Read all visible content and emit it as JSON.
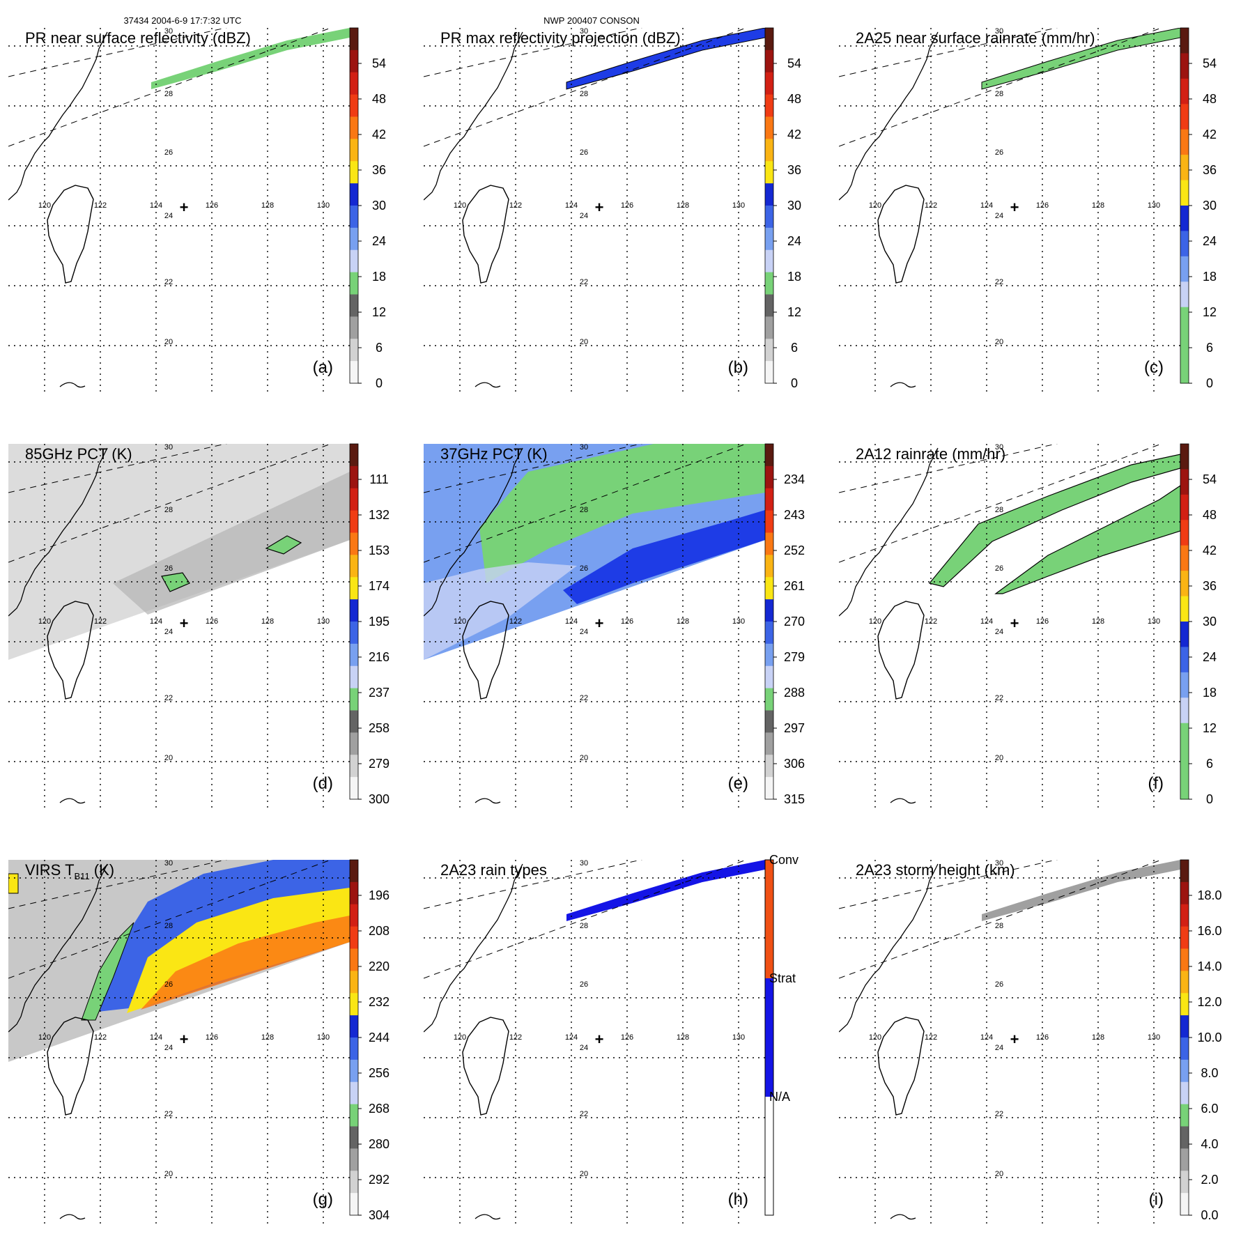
{
  "header": {
    "orbit_time": "37434 2004-6-9 17:7:32 UTC",
    "storm": "NWP 200407 CONSON"
  },
  "lon_labels": [
    "120",
    "122",
    "124",
    "126",
    "128",
    "130"
  ],
  "lat_labels": [
    "30",
    "28",
    "26",
    "24",
    "22",
    "20"
  ],
  "panels": [
    {
      "title": "PR near surface reflectivity (dBZ)",
      "letter": "(a)",
      "ticks": [
        "54",
        "48",
        "42",
        "36",
        "30",
        "24",
        "18",
        "12",
        "6",
        "0"
      ],
      "colors": [
        "#5a1a10",
        "#9c1410",
        "#d22014",
        "#f03c14",
        "#fa7814",
        "#fab414",
        "#fae614",
        "#1428d2",
        "#3c64e6",
        "#78a0f0",
        "#c8d2f5",
        "#78d278",
        "#646464",
        "#a0a0a0",
        "#d2d2d2",
        "#f5f5f5"
      ]
    },
    {
      "title": "PR max reflectivity projection (dBZ)",
      "letter": "(b)",
      "ticks": [
        "54",
        "48",
        "42",
        "36",
        "30",
        "24",
        "18",
        "12",
        "6",
        "0"
      ],
      "colors": [
        "#5a1a10",
        "#9c1410",
        "#d22014",
        "#f03c14",
        "#fa7814",
        "#fab414",
        "#fae614",
        "#1428d2",
        "#3c64e6",
        "#78a0f0",
        "#c8d2f5",
        "#78d278",
        "#646464",
        "#a0a0a0",
        "#d2d2d2",
        "#f5f5f5"
      ]
    },
    {
      "title": "2A25 near surface rainrate (mm/hr)",
      "letter": "(c)",
      "ticks": [
        "54",
        "48",
        "42",
        "36",
        "30",
        "24",
        "18",
        "12",
        "6",
        "0"
      ],
      "colors": [
        "#5a1a10",
        "#9c1410",
        "#d22014",
        "#f03c14",
        "#fa7814",
        "#fab414",
        "#fae614",
        "#1428d2",
        "#3c64e6",
        "#78a0f0",
        "#c8d2f5",
        "#78d278",
        "#78d278",
        "#78d278"
      ]
    },
    {
      "title": "85GHz PCT (K)",
      "letter": "(d)",
      "ticks": [
        "111",
        "132",
        "153",
        "174",
        "195",
        "216",
        "237",
        "258",
        "279",
        "300"
      ],
      "colors": [
        "#5a1a10",
        "#9c1410",
        "#d22014",
        "#f03c14",
        "#fa7814",
        "#fab414",
        "#fae614",
        "#1428d2",
        "#3c64e6",
        "#78a0f0",
        "#c8d2f5",
        "#78d278",
        "#646464",
        "#a0a0a0",
        "#d2d2d2",
        "#f5f5f5"
      ]
    },
    {
      "title": "37GHz PCT (K)",
      "letter": "(e)",
      "ticks": [
        "234",
        "243",
        "252",
        "261",
        "270",
        "279",
        "288",
        "297",
        "306",
        "315"
      ],
      "colors": [
        "#5a1a10",
        "#9c1410",
        "#d22014",
        "#f03c14",
        "#fa7814",
        "#fab414",
        "#fae614",
        "#1428d2",
        "#3c64e6",
        "#78a0f0",
        "#c8d2f5",
        "#78d278",
        "#646464",
        "#a0a0a0",
        "#d2d2d2",
        "#f5f5f5"
      ]
    },
    {
      "title": "2A12 rainrate (mm/hr)",
      "letter": "(f)",
      "ticks": [
        "54",
        "48",
        "42",
        "36",
        "30",
        "24",
        "18",
        "12",
        "6",
        "0"
      ],
      "colors": [
        "#5a1a10",
        "#9c1410",
        "#d22014",
        "#f03c14",
        "#fa7814",
        "#fab414",
        "#fae614",
        "#1428d2",
        "#3c64e6",
        "#78a0f0",
        "#c8d2f5",
        "#78d278",
        "#78d278",
        "#78d278"
      ]
    },
    {
      "title": "VIRS T",
      "title_sub": "B11",
      "title_unit": " (K)",
      "letter": "(g)",
      "ticks": [
        "196",
        "208",
        "220",
        "232",
        "244",
        "256",
        "268",
        "280",
        "292",
        "304"
      ],
      "colors": [
        "#5a1a10",
        "#9c1410",
        "#d22014",
        "#f03c14",
        "#fa7814",
        "#fab414",
        "#fae614",
        "#1428d2",
        "#3c64e6",
        "#78a0f0",
        "#c8d2f5",
        "#78d278",
        "#646464",
        "#a0a0a0",
        "#d2d2d2",
        "#f5f5f5"
      ]
    },
    {
      "title": "2A23 rain types",
      "letter": "(h)",
      "ticks": [
        "Conv",
        "Strat",
        "N/A"
      ],
      "colors": [
        "#f05014",
        "#1414e6",
        "#ffffff"
      ]
    },
    {
      "title": "2A23 storm height (km)",
      "letter": "(i)",
      "ticks": [
        "18.0",
        "16.0",
        "14.0",
        "12.0",
        "10.0",
        "8.0",
        "6.0",
        "4.0",
        "2.0",
        "0.0"
      ],
      "colors": [
        "#5a1a10",
        "#9c1410",
        "#d22014",
        "#f03c14",
        "#fa7814",
        "#fab414",
        "#fae614",
        "#1428d2",
        "#3c64e6",
        "#78a0f0",
        "#c8d2f5",
        "#78d278",
        "#646464",
        "#a0a0a0",
        "#d2d2d2",
        "#f5f5f5"
      ]
    }
  ],
  "center_marker": "+"
}
